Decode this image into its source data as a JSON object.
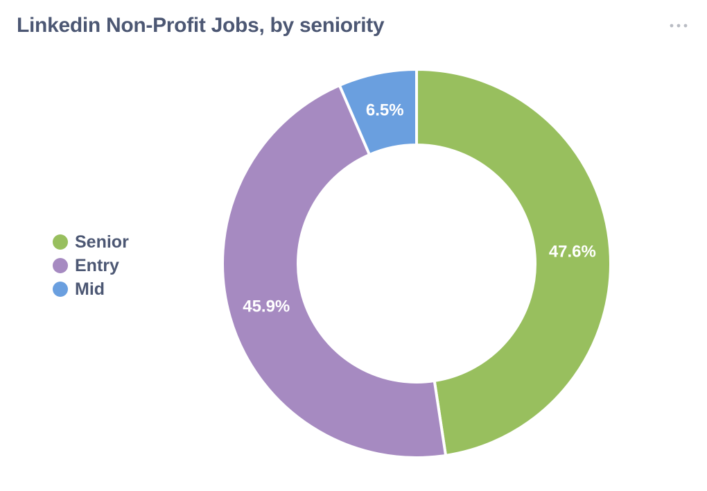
{
  "header": {
    "title": "Linkedin Non-Profit Jobs, by seniority",
    "menu_icon": "more-horizontal-icon",
    "menu_color": "#b8bbc3"
  },
  "chart_data": {
    "type": "pie",
    "donut": true,
    "title": "Linkedin Non-Profit Jobs, by seniority",
    "legend_position": "left",
    "slices": [
      {
        "name": "Senior",
        "value": 47.6,
        "label": "47.6%",
        "color": "#98bf5e"
      },
      {
        "name": "Entry",
        "value": 45.9,
        "label": "45.9%",
        "color": "#a68ac1"
      },
      {
        "name": "Mid",
        "value": 6.5,
        "label": "6.5%",
        "color": "#6a9fdf"
      }
    ]
  }
}
